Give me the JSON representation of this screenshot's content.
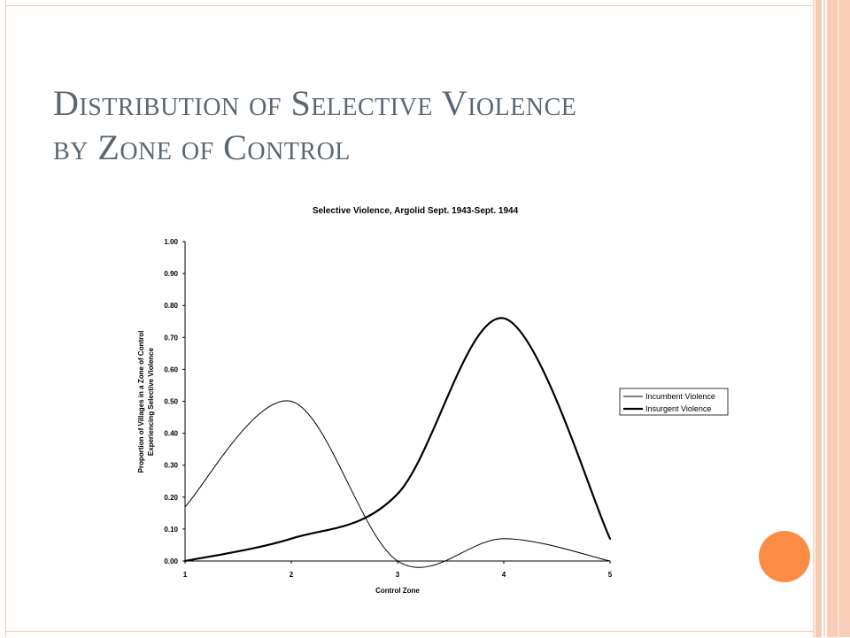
{
  "slide": {
    "title_line1": "Distribution of Selective Violence",
    "title_line2": "by Zone of Control"
  },
  "colors": {
    "accent": "#fb8c46",
    "title": "#5b6670",
    "frame": "#f9cdb7"
  },
  "chart_data": {
    "type": "line",
    "title": "Selective Violence, Argolid Sept. 1943-Sept. 1944",
    "xlabel": "Control Zone",
    "ylabel_line1": "Proportion of Villages in a Zone of Control",
    "ylabel_line2": "Experiencing Selective Violence",
    "x": [
      1,
      2,
      3,
      4,
      5
    ],
    "x_tick_labels": [
      "1",
      "2",
      "3",
      "4",
      "5"
    ],
    "y_tick_labels": [
      "0.00",
      "0.10",
      "0.20",
      "0.30",
      "0.40",
      "0.50",
      "0.60",
      "0.70",
      "0.80",
      "0.90",
      "1.00"
    ],
    "xlim": [
      1,
      5
    ],
    "ylim": [
      0,
      1
    ],
    "smoothed": true,
    "legend_position": "right",
    "series": [
      {
        "name": "Incumbent Violence",
        "values": [
          0.17,
          0.5,
          0.0,
          0.07,
          0.0
        ],
        "stroke": "thin"
      },
      {
        "name": "Insurgent Violence",
        "values": [
          0.0,
          0.07,
          0.21,
          0.76,
          0.07
        ],
        "stroke": "thick"
      }
    ]
  }
}
